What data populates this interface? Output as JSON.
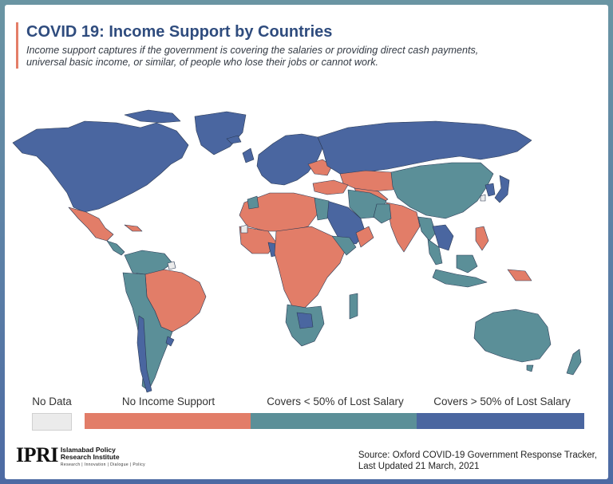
{
  "header": {
    "title": "COVID 19: Income Support by Countries",
    "subtitle": "Income support captures if the government is covering the salaries or providing direct cash payments, universal basic income, or similar, of people who lose their jobs or cannot work."
  },
  "legend": {
    "no_data": "No Data",
    "no_support": "No Income Support",
    "under_50": "Covers < 50% of Lost Salary",
    "over_50": "Covers > 50% of Lost Salary"
  },
  "colors": {
    "no_data": "#ebebeb",
    "no_support": "#e27d68",
    "under_50": "#5b8f98",
    "over_50": "#4a66a0"
  },
  "footer": {
    "logo_mark": "IPRI",
    "logo_name_1": "Islamabad Policy",
    "logo_name_2": "Research Institute",
    "logo_tagline": "Research | Innovation | Dialogue | Policy",
    "source_line_1": "Source: Oxford COVID-19 Government Response Tracker,",
    "source_line_2": "Last Updated 21 March, 2021"
  }
}
